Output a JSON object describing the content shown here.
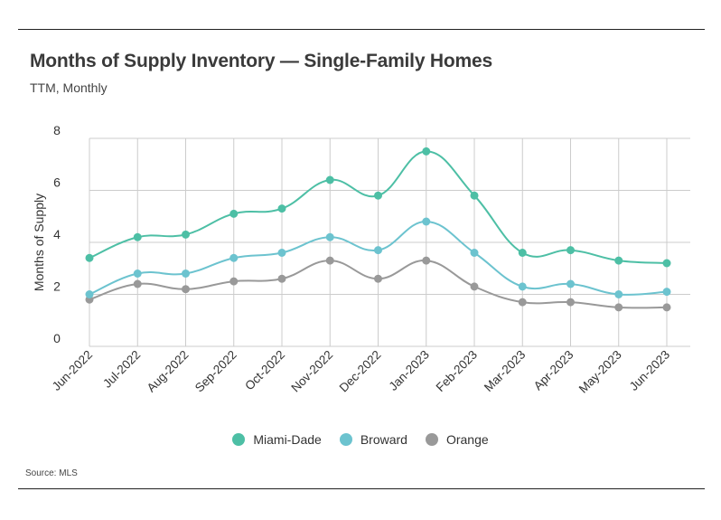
{
  "title": "Months of Supply Inventory — Single-Family Homes",
  "subtitle": "TTM, Monthly",
  "source": "Source: MLS",
  "chart_data": {
    "type": "line",
    "title": "Months of Supply Inventory — Single-Family Homes",
    "subtitle": "TTM, Monthly",
    "xlabel": "",
    "ylabel": "Months of Supply",
    "ylim": [
      0,
      8
    ],
    "yticks": [
      "0",
      "2",
      "4",
      "6",
      "8"
    ],
    "grid": true,
    "legend_position": "bottom",
    "categories": [
      "Jun-2022",
      "Jul-2022",
      "Aug-2022",
      "Sep-2022",
      "Oct-2022",
      "Nov-2022",
      "Dec-2022",
      "Jan-2023",
      "Feb-2023",
      "Mar-2023",
      "Apr-2023",
      "May-2023",
      "Jun-2023"
    ],
    "series": [
      {
        "name": "Miami-Dade",
        "color": "#4dbfa5",
        "values": [
          3.4,
          4.2,
          4.3,
          5.1,
          5.3,
          6.4,
          5.8,
          7.5,
          5.8,
          3.6,
          3.7,
          3.3,
          3.2
        ]
      },
      {
        "name": "Broward",
        "color": "#6cc3cf",
        "values": [
          2.0,
          2.8,
          2.8,
          3.4,
          3.6,
          4.2,
          3.7,
          4.8,
          3.6,
          2.3,
          2.4,
          2.0,
          2.1
        ]
      },
      {
        "name": "Orange",
        "color": "#999999",
        "values": [
          1.8,
          2.4,
          2.2,
          2.5,
          2.6,
          3.3,
          2.6,
          3.3,
          2.3,
          1.7,
          1.7,
          1.5,
          1.5
        ]
      }
    ]
  }
}
